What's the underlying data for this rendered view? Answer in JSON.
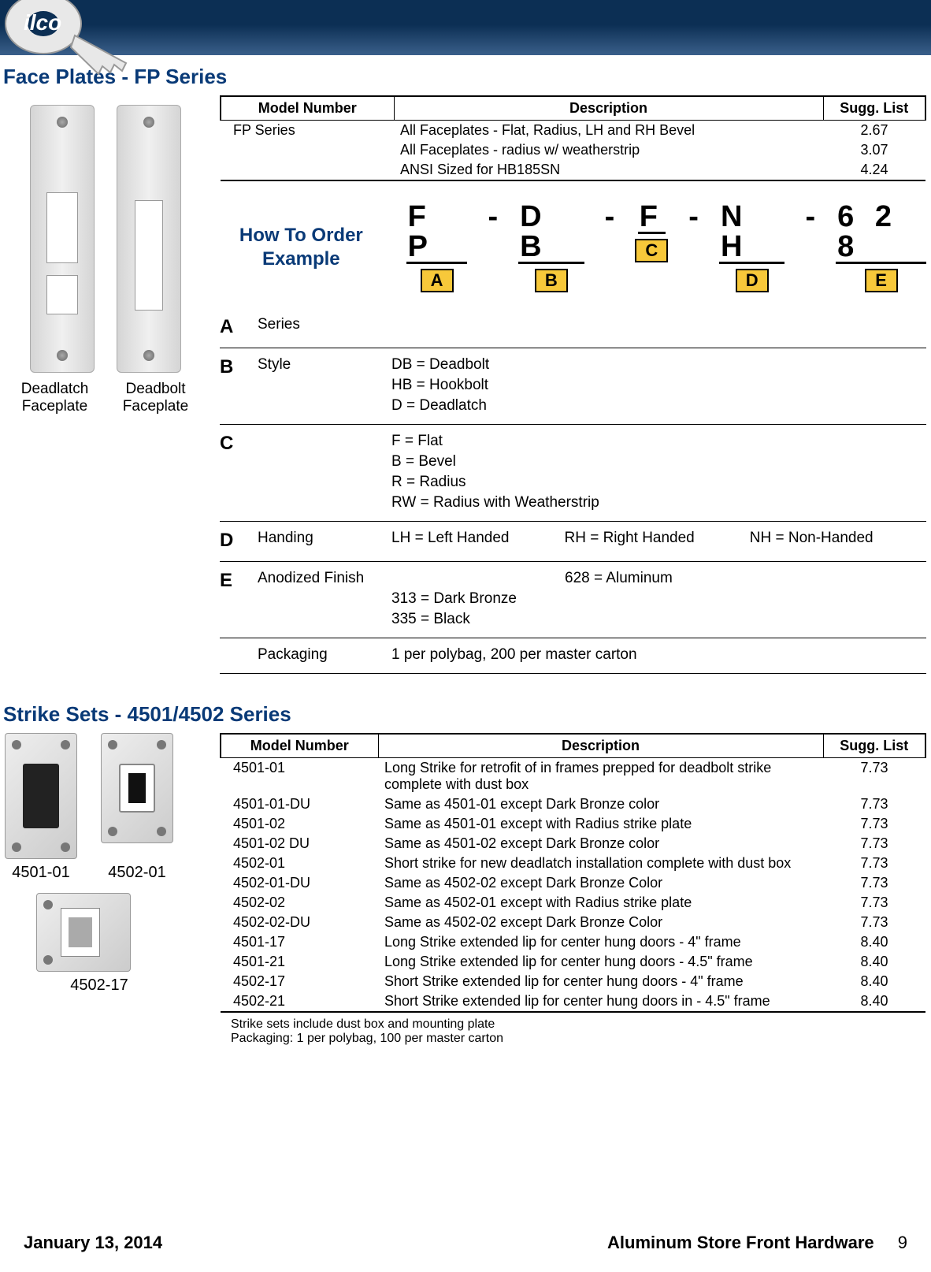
{
  "colors": {
    "brand_blue": "#093a77",
    "banner_dark": "#0c2f54",
    "tag_bg": "#f7c83a"
  },
  "header": {
    "logo_alt": "ilco"
  },
  "section1": {
    "title": "Face Plates - FP Series",
    "image_captions": {
      "left": "Deadlatch Faceplate",
      "right": "Deadbolt Faceplate"
    },
    "table": {
      "columns": [
        "Model Number",
        "Description",
        "Sugg. List"
      ],
      "col_widths": [
        "220px",
        "auto",
        "130px"
      ],
      "rows": [
        {
          "model": "FP Series",
          "desc": "All Faceplates -  Flat, Radius, LH and RH Bevel",
          "price": "2.67"
        },
        {
          "model": "",
          "desc": "All Faceplates - radius w/ weatherstrip",
          "price": "3.07"
        },
        {
          "model": "",
          "desc": "ANSI Sized for HB185SN",
          "price": "4.24"
        }
      ]
    },
    "order": {
      "label_l1": "How To Order",
      "label_l2": "Example",
      "parts": [
        {
          "code": "F P",
          "tag": "A"
        },
        {
          "code": "D B",
          "tag": "B"
        },
        {
          "code": "F",
          "tag": "C"
        },
        {
          "code": "N H",
          "tag": "D"
        },
        {
          "code": "6 2 8",
          "tag": "E"
        }
      ],
      "sep": "-"
    },
    "legend": [
      {
        "key": "A",
        "label": "Series",
        "vals": []
      },
      {
        "key": "B",
        "label": "Style",
        "vals": [
          "DB = Deadbolt",
          "HB = Hookbolt",
          "D = Deadlatch"
        ],
        "col": true
      },
      {
        "key": "C",
        "label": "",
        "vals": [
          "F = Flat",
          "B = Bevel",
          "R = Radius",
          "RW = Radius with Weatherstrip"
        ],
        "col": true
      },
      {
        "key": "D",
        "label": "Handing",
        "vals": [
          "LH = Left Handed",
          "RH = Right Handed",
          "NH = Non-Handed"
        ]
      },
      {
        "key": "E",
        "label": "Anodized Finish",
        "vals": [
          "628 = Aluminum",
          "313 = Dark Bronze",
          "335 = Black"
        ],
        "two_col": true
      },
      {
        "key": "",
        "label": "Packaging",
        "vals": [
          "1 per polybag, 200 per master carton"
        ]
      }
    ]
  },
  "section2": {
    "title": "Strike Sets - 4501/4502 Series",
    "image_captions": {
      "a": "4501-01",
      "b": "4502-01",
      "c": "4502-17"
    },
    "table": {
      "columns": [
        "Model Number",
        "Description",
        "Sugg. List"
      ],
      "col_widths": [
        "200px",
        "auto",
        "130px"
      ],
      "rows": [
        {
          "model": "4501-01",
          "desc": "Long Strike for retrofit of in frames prepped for deadbolt strike complete with dust box",
          "price": "7.73"
        },
        {
          "model": "4501-01-DU",
          "desc": "Same as 4501-01 except Dark Bronze color",
          "price": "7.73"
        },
        {
          "model": "4501-02",
          "desc": "Same as 4501-01 except with Radius strike plate",
          "price": "7.73"
        },
        {
          "model": "4501-02 DU",
          "desc": "Same as 4501-02 except Dark Bronze color",
          "price": "7.73"
        },
        {
          "model": "4502-01",
          "desc": "Short strike for new deadlatch installation complete with dust box",
          "price": "7.73"
        },
        {
          "model": "4502-01-DU",
          "desc": "Same as 4502-02 except Dark Bronze Color",
          "price": "7.73"
        },
        {
          "model": "4502-02",
          "desc": "Same as 4502-01 except with Radius strike plate",
          "price": "7.73"
        },
        {
          "model": "4502-02-DU",
          "desc": "Same as 4502-02 except Dark Bronze Color",
          "price": "7.73"
        },
        {
          "model": "4501-17",
          "desc": "Long Strike extended lip for center hung doors - 4\" frame",
          "price": "8.40"
        },
        {
          "model": "4501-21",
          "desc": "Long Strike extended lip for center hung doors - 4.5\" frame",
          "price": "8.40"
        },
        {
          "model": "4502-17",
          "desc": "Short Strike extended lip for center hung doors  - 4\" frame",
          "price": "8.40"
        },
        {
          "model": "4502-21",
          "desc": "Short Strike extended lip for center hung doors in - 4.5\" frame",
          "price": "8.40"
        }
      ]
    },
    "note_l1": "Strike sets include dust box and mounting plate",
    "note_l2": "Packaging: 1 per polybag, 100 per master carton"
  },
  "footer": {
    "date": "January 13, 2014",
    "doc_title": "Aluminum Store Front Hardware",
    "page": "9"
  }
}
